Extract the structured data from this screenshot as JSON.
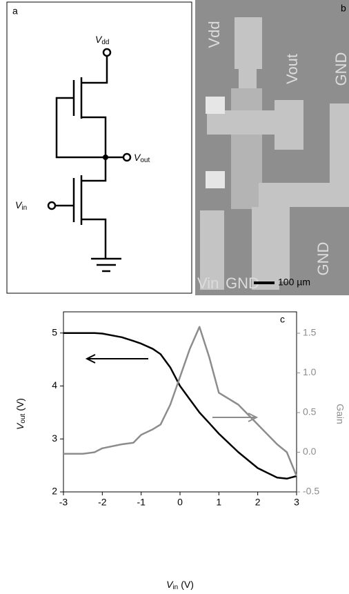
{
  "circuit": {
    "label": "a",
    "vdd": {
      "symbol": "V",
      "subscript": "dd"
    },
    "vout": {
      "symbol": "V",
      "subscript": "out"
    },
    "vin": {
      "symbol": "V",
      "subscript": "in"
    }
  },
  "micrograph": {
    "label": "b",
    "labels": [
      "Vdd",
      "Vout",
      "GND",
      "GND",
      "Vin",
      "GND"
    ],
    "scale_bar": "100 µm"
  },
  "chart_data": {
    "type": "line",
    "panel_label": "c",
    "x_label": {
      "symbol": "V",
      "subscript": "in",
      "unit": "(V)"
    },
    "y_label": {
      "symbol": "V",
      "subscript": "out",
      "unit": "(V)"
    },
    "y2_label": "Gain",
    "x": [
      -3,
      -2.5,
      -2.2,
      -2,
      -1.5,
      -1.2,
      -1,
      -0.7,
      -0.5,
      -0.25,
      0,
      0.25,
      0.5,
      0.75,
      1,
      1.5,
      2,
      2.5,
      2.75,
      3
    ],
    "series": [
      {
        "name": "Vout",
        "color": "#000000",
        "values": [
          5.0,
          5.0,
          5.0,
          4.99,
          4.92,
          4.85,
          4.8,
          4.7,
          4.6,
          4.35,
          4.0,
          3.75,
          3.5,
          3.3,
          3.1,
          2.75,
          2.45,
          2.27,
          2.25,
          2.3
        ]
      },
      {
        "name": "Gain",
        "color": "#8c8c8c",
        "axis": "y2",
        "values": [
          -0.02,
          -0.02,
          0.0,
          0.05,
          0.1,
          0.12,
          0.22,
          0.29,
          0.35,
          0.6,
          0.95,
          1.3,
          1.58,
          1.2,
          0.75,
          0.6,
          0.35,
          0.1,
          0.0,
          -0.3
        ]
      }
    ],
    "xlim": [
      -3,
      3
    ],
    "xticks": [
      -3,
      -2,
      -1,
      0,
      1,
      2,
      3
    ],
    "ylim": [
      2,
      5.4
    ],
    "yticks": [
      2,
      3,
      4,
      5
    ],
    "y2lim": [
      -0.5,
      1.77
    ],
    "y2ticks": [
      -0.5,
      {
        "value": 0,
        "label": "0.0"
      },
      0.5,
      {
        "value": 1,
        "label": "1.0"
      },
      1.5
    ]
  }
}
